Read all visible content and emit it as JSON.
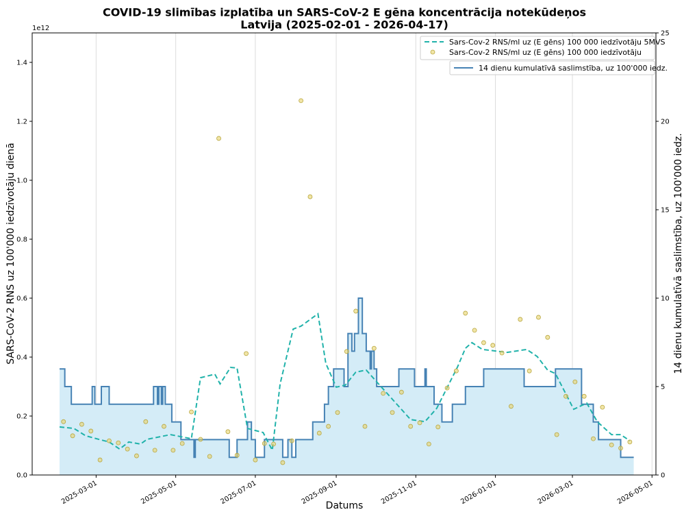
{
  "chart_data": {
    "type": "line",
    "title": "COVID-19 slimības izplatība un SARS-CoV-2 E gēna koncentrācija notekūdeņos",
    "subtitle": "Latvija (2025-02-01 - 2026-04-17)",
    "x_label": "Datums",
    "y_label": "SARS-CoV-2 RNS uz 100'000 iedzīvotāju dienā",
    "y2_label": "14 dienu kumulatīvā saslimstība, uz 100'000 iedz.",
    "y_offset_label": "1e12",
    "xlim": [
      "2025-01-11",
      "2026-05-04"
    ],
    "xticks": [
      "2025-03-01",
      "2025-05-01",
      "2025-07-01",
      "2025-09-01",
      "2025-11-01",
      "2026-01-01",
      "2026-03-01",
      "2026-05-01"
    ],
    "ylim": [
      0,
      1.5
    ],
    "yticks": [
      {
        "value": 0,
        "label": "0.0"
      },
      0.2,
      0.4,
      0.6,
      0.8,
      {
        "value": 1,
        "label": "1.0"
      },
      1.2,
      1.4
    ],
    "y2lim": [
      0,
      25
    ],
    "y2ticks": [
      0,
      5,
      10,
      15,
      20,
      25
    ],
    "grid": "x",
    "series": [
      {
        "name": "Sars-Cov-2 RNS/ml uz (E gēns) 100 000 iedzīvotāju 5MVS",
        "kind": "dashed-line",
        "color": "#20b2aa",
        "x": [
          "2025-02-01",
          "2025-02-12",
          "2025-02-21",
          "2025-03-03",
          "2025-03-11",
          "2025-03-19",
          "2025-03-26",
          "2025-04-04",
          "2025-04-09",
          "2025-04-27",
          "2025-05-05",
          "2025-05-13",
          "2025-05-20",
          "2025-05-31",
          "2025-06-04",
          "2025-06-12",
          "2025-06-17",
          "2025-06-25",
          "2025-07-07",
          "2025-07-14",
          "2025-07-20",
          "2025-07-30",
          "2025-08-05",
          "2025-08-18",
          "2025-08-24",
          "2025-09-01",
          "2025-09-08",
          "2025-09-16",
          "2025-09-24",
          "2025-10-01",
          "2025-10-12",
          "2025-10-28",
          "2025-11-08",
          "2025-11-17",
          "2025-12-03",
          "2025-12-09",
          "2025-12-14",
          "2025-12-22",
          "2026-01-10",
          "2026-01-25",
          "2026-02-02",
          "2026-02-10",
          "2026-02-16",
          "2026-03-02",
          "2026-03-12",
          "2026-03-20",
          "2026-03-31",
          "2026-04-07",
          "2026-04-14"
        ],
        "values": [
          0.163,
          0.158,
          0.133,
          0.121,
          0.112,
          0.088,
          0.112,
          0.105,
          0.121,
          0.137,
          0.13,
          0.123,
          0.33,
          0.342,
          0.309,
          0.365,
          0.363,
          0.158,
          0.144,
          0.084,
          0.309,
          0.495,
          0.505,
          0.547,
          0.379,
          0.298,
          0.305,
          0.349,
          0.356,
          0.321,
          0.267,
          0.188,
          0.181,
          0.226,
          0.367,
          0.43,
          0.449,
          0.426,
          0.416,
          0.426,
          0.402,
          0.356,
          0.344,
          0.223,
          0.244,
          0.181,
          0.137,
          0.137,
          0.116
        ]
      },
      {
        "name": "Sars-Cov-2 RNS/ml uz (E gēns) 100 000 iedzīvotāju",
        "kind": "scatter",
        "color": "#e8d46a",
        "x": [
          "2025-02-04",
          "2025-02-11",
          "2025-02-18",
          "2025-02-25",
          "2025-03-04",
          "2025-03-11",
          "2025-03-18",
          "2025-03-25",
          "2025-04-01",
          "2025-04-08",
          "2025-04-15",
          "2025-04-22",
          "2025-04-29",
          "2025-05-06",
          "2025-05-13",
          "2025-05-20",
          "2025-05-27",
          "2025-06-03",
          "2025-06-10",
          "2025-06-17",
          "2025-06-24",
          "2025-07-01",
          "2025-07-08",
          "2025-07-15",
          "2025-07-22",
          "2025-07-29",
          "2025-08-05",
          "2025-08-12",
          "2025-08-19",
          "2025-08-26",
          "2025-09-02",
          "2025-09-09",
          "2025-09-16",
          "2025-09-23",
          "2025-09-30",
          "2025-10-07",
          "2025-10-14",
          "2025-10-21",
          "2025-10-28",
          "2025-11-04",
          "2025-11-11",
          "2025-11-18",
          "2025-11-25",
          "2025-12-02",
          "2025-12-09",
          "2025-12-16",
          "2025-12-23",
          "2025-12-30",
          "2026-01-06",
          "2026-01-13",
          "2026-01-20",
          "2026-01-27",
          "2026-02-03",
          "2026-02-10",
          "2026-02-17",
          "2026-02-24",
          "2026-03-03",
          "2026-03-10",
          "2026-03-17",
          "2026-03-24",
          "2026-03-31",
          "2026-04-07",
          "2026-04-14"
        ],
        "values": [
          0.181,
          0.133,
          0.172,
          0.149,
          0.051,
          0.116,
          0.109,
          0.088,
          0.065,
          0.181,
          0.084,
          0.165,
          0.084,
          0.107,
          0.214,
          0.121,
          0.063,
          1.142,
          0.147,
          0.067,
          0.412,
          0.051,
          0.107,
          0.105,
          0.042,
          0.116,
          1.27,
          0.944,
          0.142,
          0.165,
          0.212,
          0.419,
          0.556,
          0.165,
          0.43,
          0.277,
          0.212,
          0.281,
          0.165,
          0.177,
          0.105,
          0.163,
          0.295,
          0.353,
          0.549,
          0.491,
          0.449,
          0.44,
          0.414,
          0.233,
          0.528,
          0.353,
          0.535,
          0.467,
          0.137,
          0.267,
          0.316,
          0.267,
          0.123,
          0.23,
          0.102,
          0.091,
          0.112
        ]
      },
      {
        "name": "14 dienu kumulatīvā saslimstība, uz 100'000 iedz.",
        "kind": "step",
        "axis": "y2",
        "color": "#4682b4",
        "fill": "#d4ecf7",
        "x": [
          "2025-02-01",
          "2025-02-05",
          "2025-02-10",
          "2025-02-26",
          "2025-02-28",
          "2025-03-05",
          "2025-03-11",
          "2025-04-14",
          "2025-04-17",
          "2025-04-18",
          "2025-04-20",
          "2025-04-21",
          "2025-04-23",
          "2025-04-28",
          "2025-05-05",
          "2025-05-15",
          "2025-05-16",
          "2025-06-11",
          "2025-06-17",
          "2025-06-25",
          "2025-06-28",
          "2025-07-01",
          "2025-07-08",
          "2025-07-22",
          "2025-07-26",
          "2025-07-29",
          "2025-08-01",
          "2025-08-14",
          "2025-08-23",
          "2025-08-26",
          "2025-08-30",
          "2025-09-07",
          "2025-09-10",
          "2025-09-13",
          "2025-09-15",
          "2025-09-18",
          "2025-09-21",
          "2025-09-24",
          "2025-09-27",
          "2025-09-28",
          "2025-09-30",
          "2025-10-02",
          "2025-10-19",
          "2025-10-31",
          "2025-11-08",
          "2025-11-09",
          "2025-11-15",
          "2025-11-21",
          "2025-11-29",
          "2025-12-09",
          "2025-12-23",
          "2026-01-23",
          "2026-02-16",
          "2026-03-08",
          "2026-03-17",
          "2026-03-21",
          "2026-04-07",
          "2026-04-17"
        ],
        "values": [
          6,
          5,
          4,
          5,
          4,
          5,
          4,
          5,
          4,
          5,
          4,
          5,
          4,
          3,
          2,
          1,
          2,
          1,
          2,
          3,
          2,
          1,
          2,
          1,
          2,
          1,
          2,
          3,
          4,
          5,
          6,
          5,
          8,
          7,
          8,
          10,
          8,
          7,
          6,
          7,
          6,
          5,
          6,
          5,
          6,
          5,
          4,
          3,
          4,
          5,
          6,
          5,
          6,
          4,
          3,
          2,
          1,
          1
        ]
      }
    ]
  }
}
